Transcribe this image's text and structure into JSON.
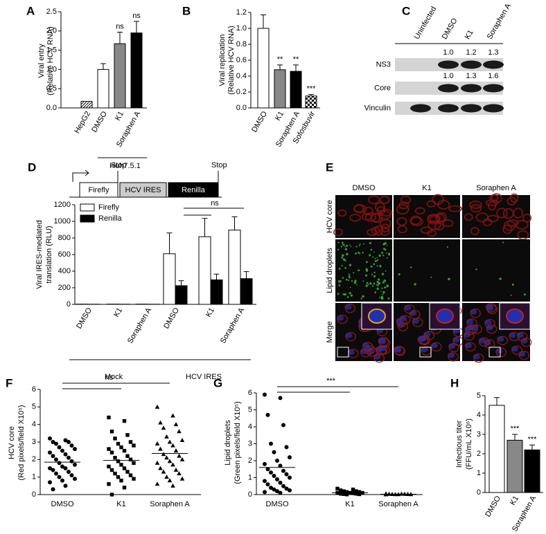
{
  "chart_data": [
    {
      "panel": "A",
      "type": "bar",
      "ylabel": [
        "Viral entry",
        "(Relative HCV RNA)"
      ],
      "categories": [
        "HepG2",
        "DMSO",
        "K1",
        "Soraphen A"
      ],
      "values": [
        0.17,
        1.0,
        1.67,
        1.95
      ],
      "errors": [
        0,
        0.15,
        0.3,
        0.3
      ],
      "colors": [
        "hatched",
        "#ffffff",
        "#888888",
        "#000000"
      ],
      "significance": [
        null,
        null,
        "ns",
        "ns"
      ],
      "group_label": "Huh7.5.1",
      "ylim": [
        0,
        2.5
      ],
      "yticks": [
        {
          "value": 0,
          "label": "0.0"
        },
        0.5,
        {
          "value": 1,
          "label": "1.0"
        },
        1.5,
        {
          "value": 2,
          "label": "2.0"
        },
        2.5
      ]
    },
    {
      "panel": "B",
      "type": "bar",
      "ylabel": [
        "Viral replication",
        "(Relative HCV RNA)"
      ],
      "categories": [
        "DMSO",
        "K1",
        "Soraphen A",
        "Sofosbuvir"
      ],
      "values": [
        1.0,
        0.48,
        0.46,
        0.15
      ],
      "errors": [
        0.17,
        0.06,
        0.08,
        0.02
      ],
      "colors": [
        "#ffffff",
        "#888888",
        "#000000",
        "checkered"
      ],
      "significance": [
        null,
        "**",
        "**",
        "***"
      ],
      "ylim": [
        0,
        1.2
      ],
      "yticks": [
        {
          "value": 0,
          "label": "0.0"
        },
        0.2,
        0.4,
        0.6,
        0.8,
        {
          "value": 1,
          "label": "1.0"
        },
        1.2
      ]
    },
    {
      "panel": "D",
      "type": "grouped-bar",
      "ylabel": [
        "Viral IRES-mediated",
        "translation (RLU)"
      ],
      "groups": [
        {
          "name": "Mock",
          "categories": [
            "DMSO",
            "K1",
            "Soraphen A"
          ]
        },
        {
          "name": "HCV IRES",
          "categories": [
            "DMSO",
            "K1",
            "Soraphen A"
          ]
        }
      ],
      "series": [
        {
          "name": "Firefly",
          "color": "#ffffff",
          "values": [
            3,
            3,
            3,
            610,
            815,
            895
          ],
          "errors": [
            0,
            0,
            0,
            250,
            220,
            160
          ]
        },
        {
          "name": "Renilla",
          "color": "#000000",
          "values": [
            2,
            2,
            2,
            225,
            295,
            310
          ],
          "errors": [
            0,
            0,
            0,
            60,
            70,
            85
          ]
        }
      ],
      "annotations": [
        "ns"
      ],
      "legend": "top-left",
      "ylim": [
        0,
        1200
      ],
      "yticks": [
        0,
        200,
        400,
        600,
        800,
        1000,
        1200
      ]
    },
    {
      "panel": "F",
      "type": "dotplot",
      "ylabel": [
        "HCV core",
        "(Red pixels/field X10⁵)"
      ],
      "groups": [
        {
          "name": "DMSO",
          "marker": "circle",
          "mean": 1.85,
          "values": [
            3.2,
            3.1,
            3.0,
            3.0,
            2.9,
            2.8,
            2.7,
            2.6,
            2.5,
            2.4,
            2.3,
            2.2,
            2.1,
            2.0,
            1.9,
            1.8,
            1.7,
            1.6,
            1.5,
            1.5,
            1.4,
            1.3,
            1.2,
            1.1,
            1.0,
            0.9,
            0.8,
            0.7,
            0.5,
            0.3
          ]
        },
        {
          "name": "K1",
          "marker": "square",
          "mean": 1.95,
          "values": [
            4.4,
            4.2,
            3.6,
            3.4,
            3.2,
            3.0,
            2.9,
            2.8,
            2.7,
            2.6,
            2.5,
            2.4,
            2.2,
            2.1,
            2.0,
            1.9,
            1.8,
            1.7,
            1.6,
            1.5,
            1.4,
            1.3,
            1.2,
            1.1,
            1.0,
            0.9,
            0.8,
            0.6,
            0.4,
            0.0
          ]
        },
        {
          "name": "Soraphen A",
          "marker": "triangle",
          "mean": 2.35,
          "values": [
            5.0,
            4.5,
            4.1,
            4.0,
            3.8,
            3.6,
            3.3,
            3.1,
            3.0,
            2.9,
            2.8,
            2.6,
            2.5,
            2.3,
            2.2,
            2.1,
            2.0,
            1.9,
            1.8,
            1.7,
            1.5,
            1.4,
            1.3,
            1.2,
            1.0,
            0.9,
            0.8,
            0.6,
            0.5
          ]
        }
      ],
      "annotations": [
        "ns"
      ],
      "ylim": [
        0,
        6
      ],
      "yticks": [
        0,
        1,
        2,
        3,
        4,
        5,
        6
      ]
    },
    {
      "panel": "G",
      "type": "dotplot",
      "ylabel": [
        "Lipid droplets",
        "(Green pixels/field X10⁵)"
      ],
      "groups": [
        {
          "name": "DMSO",
          "marker": "circle",
          "mean": 1.6,
          "values": [
            5.9,
            5.7,
            4.7,
            4.1,
            3.0,
            2.8,
            2.5,
            2.2,
            2.0,
            1.8,
            1.7,
            1.5,
            1.4,
            1.3,
            1.2,
            1.1,
            1.0,
            0.9,
            0.8,
            0.7,
            0.6,
            0.5,
            0.4,
            0.35,
            0.3,
            0.25,
            0.2,
            0.15,
            0.1
          ]
        },
        {
          "name": "K1",
          "marker": "square",
          "mean": 0.1,
          "values": [
            0.35,
            0.3,
            0.25,
            0.2,
            0.2,
            0.15,
            0.15,
            0.1,
            0.1,
            0.1,
            0.08,
            0.05,
            0.05,
            0.03,
            0.02,
            0.01
          ]
        },
        {
          "name": "Soraphen A",
          "marker": "triangle",
          "mean": 0.02,
          "values": [
            0.05,
            0.04,
            0.03,
            0.03,
            0.02,
            0.02,
            0.01,
            0.01,
            0.01,
            0
          ]
        }
      ],
      "annotations": [
        "***"
      ],
      "ylim": [
        0,
        6
      ],
      "yticks": [
        0,
        1,
        2,
        3,
        4,
        5,
        6
      ]
    },
    {
      "panel": "H",
      "type": "bar",
      "ylabel": [
        "Infectious titer",
        "(FFU/mL X10⁶)"
      ],
      "categories": [
        "DMSO",
        "K1",
        "Soraphen A"
      ],
      "values": [
        4.5,
        2.7,
        2.2
      ],
      "errors": [
        0.4,
        0.3,
        0.25
      ],
      "colors": [
        "#ffffff",
        "#888888",
        "#000000"
      ],
      "significance": [
        null,
        "***",
        "***"
      ],
      "ylim": [
        0,
        5
      ],
      "yticks": [
        0,
        1,
        2,
        3,
        4,
        5
      ]
    }
  ],
  "blot": {
    "panel": "C",
    "lanes": [
      "Uninfected",
      "DMSO",
      "K1",
      "Soraphen A"
    ],
    "rows": [
      {
        "label": "NS3",
        "quantification": [
          "1.0",
          "1.2",
          "1.3"
        ]
      },
      {
        "label": "Core",
        "quantification": [
          "1.0",
          "1.3",
          "1.6"
        ]
      },
      {
        "label": "Vinculin"
      }
    ]
  },
  "construct": {
    "elements": [
      "Firefly",
      "HCV IRES",
      "Renilla"
    ],
    "stops": [
      "Stop",
      "Stop"
    ]
  },
  "microscopy": {
    "panel": "E",
    "columns": [
      "DMSO",
      "K1",
      "Soraphen A"
    ],
    "rows": [
      "HCV core",
      "Lipid droplets",
      "Merge"
    ]
  }
}
